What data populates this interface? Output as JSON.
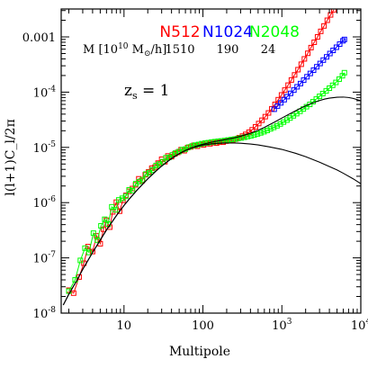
{
  "chart_data": {
    "type": "line",
    "title": "",
    "xlabel": "Multipole",
    "ylabel": "l(l+1)C_l/2π",
    "xscale": "log",
    "yscale": "log",
    "xlim": [
      1.6,
      10000
    ],
    "ylim": [
      1e-08,
      0.0032
    ],
    "x_ticks": [
      {
        "value": 10,
        "label": "10"
      },
      {
        "value": 100,
        "label": "100"
      },
      {
        "value": 1000,
        "label": "10",
        "sup": "3"
      },
      {
        "value": 10000,
        "label": "10",
        "sup": "4"
      }
    ],
    "y_ticks": [
      {
        "value": 1e-08,
        "label": "10",
        "sup": "-8"
      },
      {
        "value": 1e-07,
        "label": "10",
        "sup": "-7"
      },
      {
        "value": 1e-06,
        "label": "10",
        "sup": "-6"
      },
      {
        "value": 1e-05,
        "label": "10",
        "sup": "-5"
      },
      {
        "value": 0.0001,
        "label": "10",
        "sup": "-4"
      },
      {
        "value": 0.001,
        "label": "0.001"
      }
    ],
    "annotation_zs": {
      "main": "z",
      "sub": "s",
      "rest": " = 1"
    },
    "mass_row": {
      "label_main": "M [10",
      "label_exp": "10",
      "label_unit_pre": " M",
      "label_unit_sub": "⊙",
      "label_unit_post": "/h]",
      "values": [
        "1510",
        "190",
        "24"
      ]
    },
    "series": [
      {
        "name": "N512",
        "color": "#ff0000",
        "marker": "square",
        "points": [
          [
            2,
            2.6e-08
          ],
          [
            2.3,
            2.3e-08
          ],
          [
            2.7,
            4.5e-08
          ],
          [
            3.1,
            8e-08
          ],
          [
            3.5,
            1.6e-07
          ],
          [
            4,
            1.3e-07
          ],
          [
            4.5,
            2.5e-07
          ],
          [
            5,
            1.8e-07
          ],
          [
            5.5,
            3.3e-07
          ],
          [
            6,
            4.8e-07
          ],
          [
            6.6,
            3.6e-07
          ],
          [
            7.2,
            6.8e-07
          ],
          [
            8,
            1.02e-06
          ],
          [
            8.8,
            7e-07
          ],
          [
            9.7,
            1.1e-06
          ],
          [
            10.6,
            1.35e-06
          ],
          [
            11.6,
            1.6e-06
          ],
          [
            12.8,
            1.8e-06
          ],
          [
            14,
            2.1e-06
          ],
          [
            15.4,
            2.7e-06
          ],
          [
            17,
            2.5e-06
          ],
          [
            18.6,
            3.2e-06
          ],
          [
            20.5,
            3.6e-06
          ],
          [
            22.5,
            4.2e-06
          ],
          [
            24.7,
            4.4e-06
          ],
          [
            27,
            5.2e-06
          ],
          [
            30,
            6.1e-06
          ],
          [
            33,
            5.5e-06
          ],
          [
            36,
            7e-06
          ],
          [
            40,
            6.8e-06
          ],
          [
            44,
            7.6e-06
          ],
          [
            48,
            8.1e-06
          ],
          [
            53,
            9.1e-06
          ],
          [
            58,
            8.7e-06
          ],
          [
            64,
            9.9e-06
          ],
          [
            70,
            1.02e-05
          ],
          [
            77,
            1.09e-05
          ],
          [
            85,
            1.05e-05
          ],
          [
            93,
            1.13e-05
          ],
          [
            102,
            1.11e-05
          ],
          [
            112,
            1.18e-05
          ],
          [
            123,
            1.16e-05
          ],
          [
            135,
            1.22e-05
          ],
          [
            149,
            1.2e-05
          ],
          [
            163,
            1.25e-05
          ],
          [
            180,
            1.24e-05
          ],
          [
            197,
            1.3e-05
          ],
          [
            217,
            1.32e-05
          ],
          [
            239,
            1.37e-05
          ],
          [
            262,
            1.42e-05
          ],
          [
            288,
            1.5e-05
          ],
          [
            317,
            1.6e-05
          ],
          [
            348,
            1.72e-05
          ],
          [
            383,
            1.88e-05
          ],
          [
            421,
            2.08e-05
          ],
          [
            463,
            2.35e-05
          ],
          [
            509,
            2.7e-05
          ],
          [
            560,
            3.1e-05
          ],
          [
            616,
            3.6e-05
          ],
          [
            677,
            4.2e-05
          ],
          [
            745,
            5e-05
          ],
          [
            819,
            6e-05
          ],
          [
            900,
            7.3e-05
          ],
          [
            990,
            8.9e-05
          ],
          [
            1090,
            0.000109
          ],
          [
            1200,
            0.000134
          ],
          [
            1320,
            0.000166
          ],
          [
            1450,
            0.000205
          ],
          [
            1600,
            0.000255
          ],
          [
            1760,
            0.00032
          ],
          [
            1930,
            0.0004
          ],
          [
            2130,
            0.000505
          ],
          [
            2340,
            0.00064
          ],
          [
            2570,
            0.0008
          ],
          [
            2830,
            0.001
          ],
          [
            3110,
            0.00126
          ],
          [
            3420,
            0.00158
          ],
          [
            3760,
            0.002
          ],
          [
            4140,
            0.0025
          ],
          [
            4550,
            0.0031
          ]
        ]
      },
      {
        "name": "N1024",
        "color": "#0000ff",
        "marker": "square",
        "points": [
          [
            800,
            4.9e-05
          ],
          [
            880,
            5.6e-05
          ],
          [
            970,
            6.4e-05
          ],
          [
            1070,
            7.3e-05
          ],
          [
            1170,
            8.3e-05
          ],
          [
            1290,
            9.5e-05
          ],
          [
            1420,
            0.000109
          ],
          [
            1560,
            0.000125
          ],
          [
            1720,
            0.000143
          ],
          [
            1890,
            0.000165
          ],
          [
            2080,
            0.00019
          ],
          [
            2290,
            0.000218
          ],
          [
            2520,
            0.00025
          ],
          [
            2770,
            0.000288
          ],
          [
            3050,
            0.00033
          ],
          [
            3350,
            0.00038
          ],
          [
            3690,
            0.000435
          ],
          [
            4060,
            0.0005
          ],
          [
            4460,
            0.00057
          ],
          [
            4910,
            0.00065
          ],
          [
            5400,
            0.00074
          ],
          [
            5940,
            0.00085
          ],
          [
            6200,
            0.0009
          ]
        ]
      },
      {
        "name": "N2048",
        "color": "#00ff00",
        "marker": "square",
        "points": [
          [
            2,
            2.5e-08
          ],
          [
            2.4,
            4e-08
          ],
          [
            2.8,
            9e-08
          ],
          [
            3.2,
            1.5e-07
          ],
          [
            3.6,
            1.25e-07
          ],
          [
            4.1,
            2.8e-07
          ],
          [
            4.6,
            2.1e-07
          ],
          [
            5.1,
            3.8e-07
          ],
          [
            5.7,
            5e-07
          ],
          [
            6.3,
            4.1e-07
          ],
          [
            7,
            8.4e-07
          ],
          [
            7.8,
            7.4e-07
          ],
          [
            8.6,
            1.12e-06
          ],
          [
            9.5,
            1.2e-06
          ],
          [
            10.5,
            1.3e-06
          ],
          [
            11.6,
            1.7e-06
          ],
          [
            12.8,
            1.65e-06
          ],
          [
            14.1,
            2.2e-06
          ],
          [
            15.6,
            2.4e-06
          ],
          [
            17.2,
            2.6e-06
          ],
          [
            19,
            3.3e-06
          ],
          [
            21,
            3.5e-06
          ],
          [
            23,
            3.9e-06
          ],
          [
            25.5,
            4.7e-06
          ],
          [
            28,
            5e-06
          ],
          [
            31,
            5.5e-06
          ],
          [
            34,
            6.5e-06
          ],
          [
            37.5,
            6.6e-06
          ],
          [
            41,
            7.3e-06
          ],
          [
            45,
            7.9e-06
          ],
          [
            50,
            8.4e-06
          ],
          [
            55,
            9.1e-06
          ],
          [
            60,
            9.3e-06
          ],
          [
            66,
            1.01e-05
          ],
          [
            73,
            1.06e-05
          ],
          [
            80,
            1.1e-05
          ],
          [
            88,
            1.13e-05
          ],
          [
            97,
            1.17e-05
          ],
          [
            107,
            1.2e-05
          ],
          [
            117,
            1.22e-05
          ],
          [
            129,
            1.25e-05
          ],
          [
            142,
            1.27e-05
          ],
          [
            156,
            1.29e-05
          ],
          [
            172,
            1.31e-05
          ],
          [
            189,
            1.33e-05
          ],
          [
            208,
            1.36e-05
          ],
          [
            229,
            1.39e-05
          ],
          [
            252,
            1.41e-05
          ],
          [
            277,
            1.45e-05
          ],
          [
            305,
            1.48e-05
          ],
          [
            335,
            1.52e-05
          ],
          [
            369,
            1.57e-05
          ],
          [
            406,
            1.62e-05
          ],
          [
            446,
            1.68e-05
          ],
          [
            491,
            1.75e-05
          ],
          [
            540,
            1.83e-05
          ],
          [
            594,
            1.92e-05
          ],
          [
            653,
            2.03e-05
          ],
          [
            718,
            2.16e-05
          ],
          [
            790,
            2.3e-05
          ],
          [
            869,
            2.46e-05
          ],
          [
            956,
            2.65e-05
          ],
          [
            1050,
            2.87e-05
          ],
          [
            1160,
            3.12e-05
          ],
          [
            1270,
            3.4e-05
          ],
          [
            1400,
            3.72e-05
          ],
          [
            1540,
            4.08e-05
          ],
          [
            1700,
            4.5e-05
          ],
          [
            1870,
            4.95e-05
          ],
          [
            2050,
            5.45e-05
          ],
          [
            2260,
            6e-05
          ],
          [
            2480,
            6.7e-05
          ],
          [
            2730,
            7.5e-05
          ],
          [
            3000,
            8.4e-05
          ],
          [
            3300,
            9.4e-05
          ],
          [
            3640,
            0.000105
          ],
          [
            4000,
            0.000118
          ],
          [
            4400,
            0.000133
          ],
          [
            4840,
            0.00015
          ],
          [
            5320,
            0.000172
          ],
          [
            5850,
            0.000198
          ],
          [
            6200,
            0.000225
          ]
        ]
      }
    ],
    "curves": [
      {
        "style": "solid",
        "color": "#000000",
        "points": [
          [
            1.7,
            1.4e-08
          ],
          [
            2,
            2.2e-08
          ],
          [
            2.5,
            3.8e-08
          ],
          [
            3,
            6.2e-08
          ],
          [
            4,
            1.25e-07
          ],
          [
            5,
            2.1e-07
          ],
          [
            6,
            3.2e-07
          ],
          [
            7,
            4.4e-07
          ],
          [
            8,
            5.8e-07
          ],
          [
            10,
            8.9e-07
          ],
          [
            12,
            1.22e-06
          ],
          [
            15,
            1.75e-06
          ],
          [
            20,
            2.7e-06
          ],
          [
            25,
            3.65e-06
          ],
          [
            30,
            4.6e-06
          ],
          [
            40,
            6.3e-06
          ],
          [
            50,
            7.7e-06
          ],
          [
            60,
            8.8e-06
          ],
          [
            70,
            9.7e-06
          ],
          [
            80,
            1.04e-05
          ],
          [
            100,
            1.14e-05
          ],
          [
            130,
            1.25e-05
          ],
          [
            160,
            1.32e-05
          ],
          [
            200,
            1.4e-05
          ],
          [
            250,
            1.49e-05
          ],
          [
            300,
            1.59e-05
          ],
          [
            400,
            1.8e-05
          ],
          [
            500,
            2.04e-05
          ],
          [
            600,
            2.3e-05
          ],
          [
            700,
            2.58e-05
          ],
          [
            800,
            2.85e-05
          ],
          [
            1000,
            3.4e-05
          ],
          [
            1300,
            4.15e-05
          ],
          [
            1600,
            4.85e-05
          ],
          [
            2000,
            5.65e-05
          ],
          [
            2500,
            6.45e-05
          ],
          [
            3000,
            7.05e-05
          ],
          [
            3500,
            7.5e-05
          ],
          [
            4000,
            7.8e-05
          ],
          [
            5000,
            8.1e-05
          ],
          [
            6000,
            8.15e-05
          ],
          [
            7000,
            8e-05
          ],
          [
            8000,
            7.7e-05
          ],
          [
            10000,
            7e-05
          ]
        ]
      },
      {
        "style": "solid",
        "color": "#000000",
        "points": [
          [
            1.7,
            1.4e-08
          ],
          [
            2,
            2.2e-08
          ],
          [
            2.5,
            3.8e-08
          ],
          [
            3,
            6.2e-08
          ],
          [
            4,
            1.25e-07
          ],
          [
            5,
            2.1e-07
          ],
          [
            6,
            3.2e-07
          ],
          [
            7,
            4.4e-07
          ],
          [
            8,
            5.8e-07
          ],
          [
            10,
            8.9e-07
          ],
          [
            12,
            1.22e-06
          ],
          [
            15,
            1.75e-06
          ],
          [
            20,
            2.7e-06
          ],
          [
            25,
            3.65e-06
          ],
          [
            30,
            4.6e-06
          ],
          [
            40,
            6.3e-06
          ],
          [
            50,
            7.7e-06
          ],
          [
            60,
            8.8e-06
          ],
          [
            70,
            9.6e-06
          ],
          [
            80,
            1.02e-05
          ],
          [
            100,
            1.1e-05
          ],
          [
            130,
            1.16e-05
          ],
          [
            160,
            1.19e-05
          ],
          [
            200,
            1.2e-05
          ],
          [
            250,
            1.2e-05
          ],
          [
            300,
            1.19e-05
          ],
          [
            400,
            1.15e-05
          ],
          [
            500,
            1.11e-05
          ],
          [
            700,
            1.02e-05
          ],
          [
            1000,
            9.2e-06
          ],
          [
            1500,
            7.8e-06
          ],
          [
            2000,
            6.8e-06
          ],
          [
            3000,
            5.4e-06
          ],
          [
            4000,
            4.5e-06
          ],
          [
            5000,
            3.9e-06
          ],
          [
            6000,
            3.4e-06
          ],
          [
            8000,
            2.7e-06
          ],
          [
            10000,
            2.2e-06
          ]
        ]
      }
    ]
  }
}
